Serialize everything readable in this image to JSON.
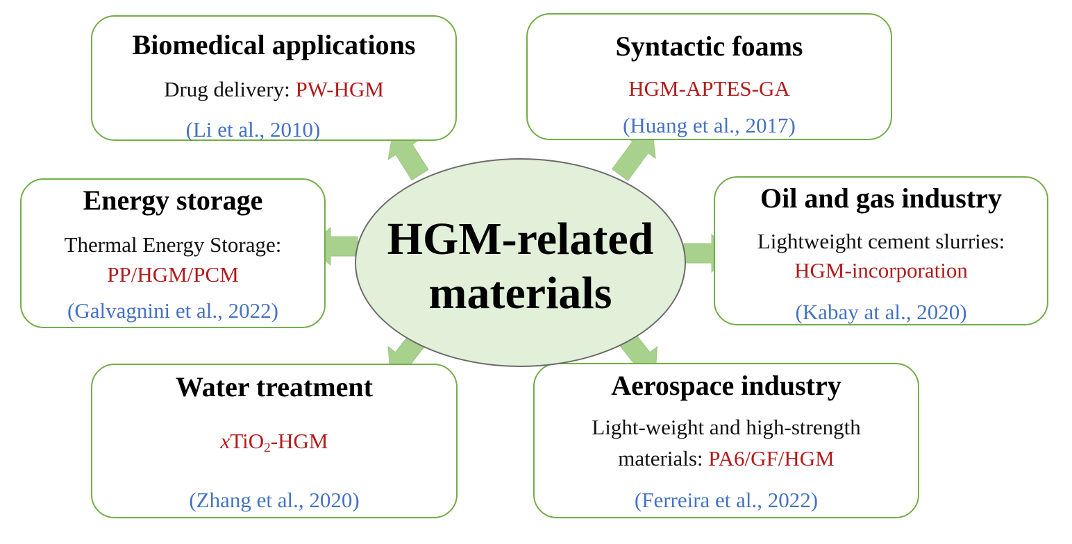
{
  "center": {
    "line1": "HGM-related",
    "line2": "materials"
  },
  "colors": {
    "box_border": "#72ad47",
    "arrow_fill": "#a9d18e",
    "center_fill": "#e2efd9",
    "material_text": "#b31b1b",
    "citation_text": "#4472c4"
  },
  "boxes": {
    "biomedical": {
      "title": "Biomedical applications",
      "prefix": "Drug delivery: ",
      "material": "PW-HGM",
      "citation": "(Li et al., 2010)"
    },
    "syntactic": {
      "title": "Syntactic foams",
      "material": "HGM-APTES-GA",
      "citation": "(Huang et al., 2017)"
    },
    "energy": {
      "title": "Energy storage",
      "description": "Thermal Energy Storage:",
      "material": "PP/HGM/PCM",
      "citation": "(Galvagnini et al., 2022)"
    },
    "oil_gas": {
      "title": "Oil and gas industry",
      "description": "Lightweight cement slurries:",
      "material": "HGM-incorporation",
      "citation": "(Kabay at al., 2020)"
    },
    "water": {
      "title": "Water treatment",
      "material_italic": "x",
      "material_main": "TiO",
      "material_sub": "2",
      "material_suffix": "-HGM",
      "citation": "(Zhang et al., 2020)"
    },
    "aerospace": {
      "title": "Aerospace industry",
      "description_line1": "Light-weight and high-strength",
      "prefix": "materials: ",
      "material": "PA6/GF/HGM",
      "citation": "(Ferreira et al., 2022)"
    }
  }
}
